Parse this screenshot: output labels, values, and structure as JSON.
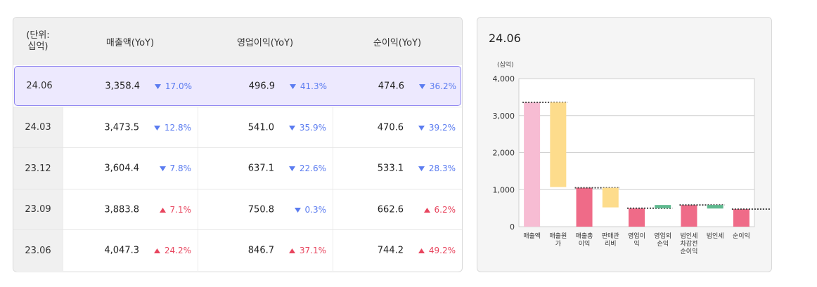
{
  "table": {
    "unit_line1": "(단위:",
    "unit_line2": "십억)",
    "col_revenue": "매출액(YoY)",
    "col_op": "영업이익(YoY)",
    "col_net": "순이익(YoY)",
    "rows": [
      {
        "period": "24.06",
        "revenue": "3,358.4",
        "revenue_chg": "17.0%",
        "revenue_dir": "down",
        "op": "496.9",
        "op_chg": "41.3%",
        "op_dir": "down",
        "net": "474.6",
        "net_chg": "36.2%",
        "net_dir": "down",
        "selected": true
      },
      {
        "period": "24.03",
        "revenue": "3,473.5",
        "revenue_chg": "12.8%",
        "revenue_dir": "down",
        "op": "541.0",
        "op_chg": "35.9%",
        "op_dir": "down",
        "net": "470.6",
        "net_chg": "39.2%",
        "net_dir": "down"
      },
      {
        "period": "23.12",
        "revenue": "3,604.4",
        "revenue_chg": "7.8%",
        "revenue_dir": "down",
        "op": "637.1",
        "op_chg": "22.6%",
        "op_dir": "down",
        "net": "533.1",
        "net_chg": "28.3%",
        "net_dir": "down"
      },
      {
        "period": "23.09",
        "revenue": "3,883.8",
        "revenue_chg": "7.1%",
        "revenue_dir": "up",
        "op": "750.8",
        "op_chg": "0.3%",
        "op_dir": "down",
        "net": "662.6",
        "net_chg": "6.2%",
        "net_dir": "up"
      },
      {
        "period": "23.06",
        "revenue": "4,047.3",
        "revenue_chg": "24.2%",
        "revenue_dir": "up",
        "op": "846.7",
        "op_chg": "37.1%",
        "op_dir": "up",
        "net": "744.2",
        "net_chg": "49.2%",
        "net_dir": "up"
      }
    ]
  },
  "colors": {
    "down": "#5b7cf0",
    "up": "#e8455e",
    "selected_bg": "#ede9fe",
    "selected_border": "#8f86f0"
  },
  "icons": {
    "down": "triangle-down-icon",
    "up": "triangle-up-icon"
  },
  "chart_panel": {
    "title": "24.06"
  },
  "chart_data": {
    "type": "bar",
    "subtype": "waterfall",
    "ylabel": "(십억)",
    "ylim": [
      0,
      4000
    ],
    "yticks": [
      0,
      1000,
      2000,
      3000,
      4000
    ],
    "ytick_labels": [
      "0",
      "1,000",
      "2,000",
      "3,000",
      "4,000"
    ],
    "grid": true,
    "categories": [
      [
        "매출액"
      ],
      [
        "매출원",
        "가"
      ],
      [
        "매출총",
        "이익"
      ],
      [
        "판매관",
        "리비"
      ],
      [
        "영업이",
        "익"
      ],
      [
        "영업외",
        "손익"
      ],
      [
        "법인세",
        "차감전",
        "순이익"
      ],
      [
        "법인세"
      ],
      [
        "순이익"
      ]
    ],
    "bars": [
      {
        "start": 0,
        "end": 3358,
        "color": "#f7bcd3",
        "total": true
      },
      {
        "start": 3358,
        "end": 1070,
        "color": "#fddc8c"
      },
      {
        "start": 0,
        "end": 1050,
        "color": "#ef6b88",
        "total": true
      },
      {
        "start": 1050,
        "end": 520,
        "color": "#fddc8c"
      },
      {
        "start": 0,
        "end": 497,
        "color": "#ef6b88",
        "total": true
      },
      {
        "start": 497,
        "end": 585,
        "color": "#5fb98f"
      },
      {
        "start": 0,
        "end": 585,
        "color": "#ef6b88",
        "total": true
      },
      {
        "start": 585,
        "end": 490,
        "color": "#5fb98f"
      },
      {
        "start": 0,
        "end": 475,
        "color": "#ef6b88",
        "total": true
      }
    ]
  }
}
